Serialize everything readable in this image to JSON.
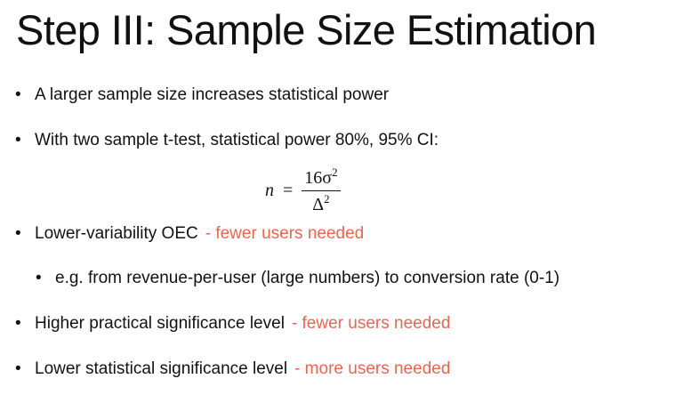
{
  "slide": {
    "title": "Step III: Sample Size Estimation",
    "bullets": [
      {
        "text": "A larger sample size increases statistical power",
        "note": ""
      },
      {
        "text": "With two sample t-test, statistical power 80%, 95% CI:",
        "note": ""
      },
      {
        "text": "Lower-variability OEC",
        "note": "- fewer users needed"
      },
      {
        "text": "e.g. from revenue-per-user (large numbers) to conversion rate (0-1)",
        "note": ""
      },
      {
        "text": "Higher practical significance level",
        "note": "- fewer users needed"
      },
      {
        "text": "Lower statistical significance level",
        "note": "- more users needed"
      }
    ],
    "bullet_glyph": "•",
    "formula": {
      "lhs": "n",
      "equals": "=",
      "numerator_coef": "16σ",
      "numerator_exp": "2",
      "denominator_base": "Δ",
      "denominator_exp": "2"
    }
  },
  "colors": {
    "text": "#111111",
    "note": "#e8664f",
    "background": "#ffffff"
  }
}
